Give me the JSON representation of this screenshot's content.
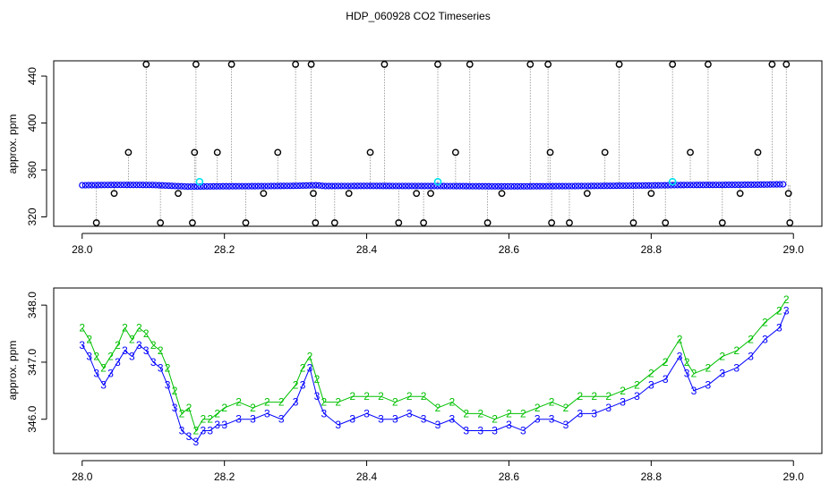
{
  "title": "HDP_060928  CO2 Timeseries",
  "colors": {
    "raw_black": "#000000",
    "raw_line": "#8c8c8c",
    "blue": "#0000ff",
    "cyan": "#00e5ee",
    "green": "#00c000"
  },
  "chart_data": [
    {
      "type": "scatter",
      "ylabel": "approx. ppm",
      "xlim": [
        27.96,
        29.04
      ],
      "ylim": [
        312,
        453
      ],
      "xticks": [
        "28.0",
        "28.2",
        "28.4",
        "28.6",
        "28.8",
        "29.0"
      ],
      "yticks": [
        "320",
        "360",
        "400",
        "440"
      ],
      "ytick_values": [
        320,
        360,
        400,
        440
      ],
      "xtick_values": [
        28.0,
        28.2,
        28.4,
        28.6,
        28.8,
        29.0
      ],
      "series": [
        {
          "values": [
            [
              28.02,
              315
            ],
            [
              28.045,
              340
            ],
            [
              28.065,
              375
            ],
            [
              28.09,
              450
            ],
            [
              28.11,
              315
            ],
            [
              28.135,
              340
            ],
            [
              28.155,
              315
            ],
            [
              28.158,
              375
            ],
            [
              28.16,
              450
            ],
            [
              28.19,
              375
            ],
            [
              28.21,
              450
            ],
            [
              28.23,
              315
            ],
            [
              28.255,
              340
            ],
            [
              28.275,
              375
            ],
            [
              28.3,
              450
            ],
            [
              28.322,
              450
            ],
            [
              28.325,
              340
            ],
            [
              28.328,
              315
            ],
            [
              28.355,
              315
            ],
            [
              28.375,
              340
            ],
            [
              28.405,
              375
            ],
            [
              28.425,
              450
            ],
            [
              28.445,
              315
            ],
            [
              28.47,
              340
            ],
            [
              28.48,
              315
            ],
            [
              28.49,
              340
            ],
            [
              28.5,
              450
            ],
            [
              28.525,
              375
            ],
            [
              28.545,
              450
            ],
            [
              28.57,
              315
            ],
            [
              28.59,
              340
            ],
            [
              28.63,
              450
            ],
            [
              28.655,
              450
            ],
            [
              28.658,
              375
            ],
            [
              28.66,
              315
            ],
            [
              28.685,
              315
            ],
            [
              28.71,
              340
            ],
            [
              28.735,
              375
            ],
            [
              28.755,
              450
            ],
            [
              28.775,
              315
            ],
            [
              28.8,
              340
            ],
            [
              28.82,
              315
            ],
            [
              28.83,
              450
            ],
            [
              28.855,
              375
            ],
            [
              28.88,
              450
            ],
            [
              28.9,
              315
            ],
            [
              28.925,
              340
            ],
            [
              28.95,
              375
            ],
            [
              28.97,
              450
            ],
            [
              28.99,
              450
            ],
            [
              28.993,
              340
            ],
            [
              28.995,
              315
            ]
          ]
        },
        {
          "values": [
            [
              28.165,
              350
            ],
            [
              28.5,
              350
            ],
            [
              28.83,
              350
            ]
          ]
        }
      ],
      "baseline": [
        [
          28.0,
          347
        ],
        [
          28.05,
          347.3
        ],
        [
          28.1,
          347.2
        ],
        [
          28.15,
          345.8
        ],
        [
          28.2,
          346.1
        ],
        [
          28.25,
          346.2
        ],
        [
          28.3,
          346.5
        ],
        [
          28.33,
          347
        ],
        [
          28.34,
          346.3
        ],
        [
          28.4,
          346.4
        ],
        [
          28.5,
          346.3
        ],
        [
          28.6,
          346
        ],
        [
          28.7,
          346.3
        ],
        [
          28.8,
          346.8
        ],
        [
          28.85,
          347.2
        ],
        [
          28.9,
          347.3
        ],
        [
          28.95,
          347.5
        ],
        [
          28.99,
          347.8
        ]
      ]
    },
    {
      "type": "line",
      "ylabel": "approx. ppm",
      "xlim": [
        27.96,
        29.04
      ],
      "ylim": [
        345.4,
        348.3
      ],
      "xticks": [
        "28.0",
        "28.2",
        "28.4",
        "28.6",
        "28.8",
        "29.0"
      ],
      "yticks": [
        "346.0",
        "347.0",
        "348.0"
      ],
      "ytick_values": [
        346.0,
        347.0,
        348.0
      ],
      "xtick_values": [
        28.0,
        28.2,
        28.4,
        28.6,
        28.8,
        29.0
      ],
      "series": [
        {
          "name": "2",
          "values": [
            [
              28.0,
              347.6
            ],
            [
              28.01,
              347.4
            ],
            [
              28.02,
              347.1
            ],
            [
              28.03,
              346.9
            ],
            [
              28.04,
              347.1
            ],
            [
              28.05,
              347.3
            ],
            [
              28.06,
              347.6
            ],
            [
              28.07,
              347.4
            ],
            [
              28.08,
              347.6
            ],
            [
              28.09,
              347.5
            ],
            [
              28.1,
              347.3
            ],
            [
              28.11,
              347.2
            ],
            [
              28.12,
              346.9
            ],
            [
              28.13,
              346.5
            ],
            [
              28.14,
              346.1
            ],
            [
              28.15,
              346.2
            ],
            [
              28.16,
              345.8
            ],
            [
              28.17,
              346
            ],
            [
              28.18,
              346
            ],
            [
              28.19,
              346.1
            ],
            [
              28.2,
              346.2
            ],
            [
              28.22,
              346.3
            ],
            [
              28.24,
              346.2
            ],
            [
              28.26,
              346.3
            ],
            [
              28.28,
              346.3
            ],
            [
              28.3,
              346.6
            ],
            [
              28.31,
              346.9
            ],
            [
              28.32,
              347.1
            ],
            [
              28.33,
              346.7
            ],
            [
              28.34,
              346.3
            ],
            [
              28.36,
              346.3
            ],
            [
              28.38,
              346.4
            ],
            [
              28.4,
              346.4
            ],
            [
              28.42,
              346.4
            ],
            [
              28.44,
              346.3
            ],
            [
              28.46,
              346.4
            ],
            [
              28.48,
              346.4
            ],
            [
              28.5,
              346.2
            ],
            [
              28.52,
              346.3
            ],
            [
              28.54,
              346.1
            ],
            [
              28.56,
              346.1
            ],
            [
              28.58,
              346.0
            ],
            [
              28.6,
              346.1
            ],
            [
              28.62,
              346.1
            ],
            [
              28.64,
              346.2
            ],
            [
              28.66,
              346.3
            ],
            [
              28.68,
              346.2
            ],
            [
              28.7,
              346.4
            ],
            [
              28.72,
              346.4
            ],
            [
              28.74,
              346.4
            ],
            [
              28.76,
              346.5
            ],
            [
              28.78,
              346.6
            ],
            [
              28.8,
              346.8
            ],
            [
              28.82,
              347
            ],
            [
              28.84,
              347.4
            ],
            [
              28.85,
              347
            ],
            [
              28.86,
              346.8
            ],
            [
              28.88,
              346.9
            ],
            [
              28.9,
              347.1
            ],
            [
              28.92,
              347.2
            ],
            [
              28.94,
              347.4
            ],
            [
              28.96,
              347.7
            ],
            [
              28.98,
              347.9
            ],
            [
              28.99,
              348.1
            ]
          ]
        },
        {
          "name": "3",
          "values": [
            [
              28.0,
              347.3
            ],
            [
              28.01,
              347.1
            ],
            [
              28.02,
              346.8
            ],
            [
              28.03,
              346.6
            ],
            [
              28.04,
              346.8
            ],
            [
              28.05,
              347.0
            ],
            [
              28.06,
              347.2
            ],
            [
              28.07,
              347.1
            ],
            [
              28.08,
              347.3
            ],
            [
              28.09,
              347.2
            ],
            [
              28.1,
              347.0
            ],
            [
              28.11,
              346.9
            ],
            [
              28.12,
              346.6
            ],
            [
              28.13,
              346.2
            ],
            [
              28.14,
              345.8
            ],
            [
              28.15,
              345.7
            ],
            [
              28.16,
              345.6
            ],
            [
              28.17,
              345.8
            ],
            [
              28.18,
              345.8
            ],
            [
              28.19,
              345.9
            ],
            [
              28.2,
              345.9
            ],
            [
              28.22,
              346.0
            ],
            [
              28.24,
              346.0
            ],
            [
              28.26,
              346.1
            ],
            [
              28.28,
              346.0
            ],
            [
              28.3,
              346.3
            ],
            [
              28.31,
              346.6
            ],
            [
              28.32,
              346.9
            ],
            [
              28.33,
              346.4
            ],
            [
              28.34,
              346.1
            ],
            [
              28.36,
              345.9
            ],
            [
              28.38,
              346.0
            ],
            [
              28.4,
              346.1
            ],
            [
              28.42,
              346.0
            ],
            [
              28.44,
              346.0
            ],
            [
              28.46,
              346.1
            ],
            [
              28.48,
              346.0
            ],
            [
              28.5,
              345.9
            ],
            [
              28.52,
              346.0
            ],
            [
              28.54,
              345.8
            ],
            [
              28.56,
              345.8
            ],
            [
              28.58,
              345.8
            ],
            [
              28.6,
              345.9
            ],
            [
              28.62,
              345.8
            ],
            [
              28.64,
              346.0
            ],
            [
              28.66,
              346.0
            ],
            [
              28.68,
              345.9
            ],
            [
              28.7,
              346.1
            ],
            [
              28.72,
              346.1
            ],
            [
              28.74,
              346.2
            ],
            [
              28.76,
              346.3
            ],
            [
              28.78,
              346.4
            ],
            [
              28.8,
              346.6
            ],
            [
              28.82,
              346.7
            ],
            [
              28.84,
              347.1
            ],
            [
              28.85,
              346.8
            ],
            [
              28.86,
              346.5
            ],
            [
              28.88,
              346.6
            ],
            [
              28.9,
              346.8
            ],
            [
              28.92,
              346.9
            ],
            [
              28.94,
              347.1
            ],
            [
              28.96,
              347.4
            ],
            [
              28.98,
              347.6
            ],
            [
              28.99,
              347.9
            ]
          ]
        }
      ]
    }
  ]
}
